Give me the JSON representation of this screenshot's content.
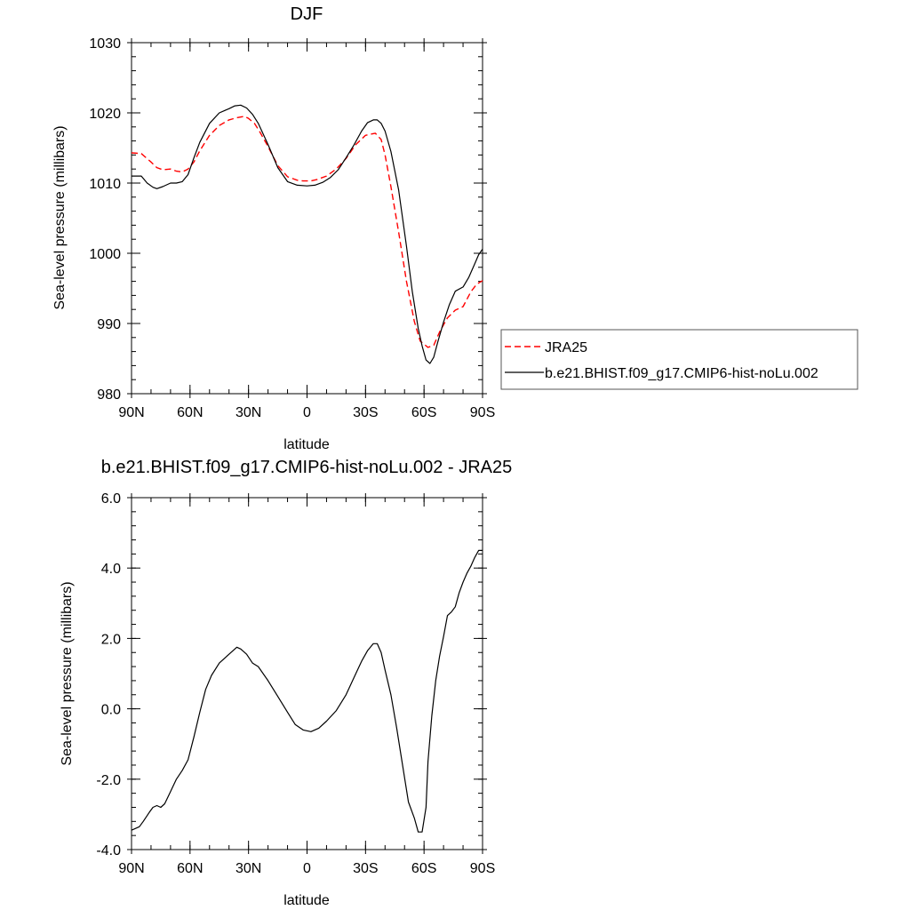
{
  "chart_data": [
    {
      "type": "line",
      "title": "DJF",
      "xlabel": "latitude",
      "ylabel": "Sea-level pressure (millibars)",
      "xlim": [
        90,
        -90
      ],
      "ylim": [
        980,
        1030
      ],
      "x_ticks": [
        90,
        60,
        30,
        0,
        -30,
        -60,
        -90
      ],
      "x_tick_labels": [
        "90N",
        "60N",
        "30N",
        "0",
        "30S",
        "60S",
        "90S"
      ],
      "y_ticks": [
        980,
        990,
        1000,
        1010,
        1020,
        1030
      ],
      "y_tick_labels": [
        "980",
        "990",
        "1000",
        "1010",
        "1020",
        "1030"
      ],
      "legend_position": "right",
      "series": [
        {
          "name": "JRA25",
          "color": "#ff0000",
          "dash": "dashed",
          "x": [
            90,
            85,
            80,
            77,
            74,
            70,
            67,
            64,
            61,
            58,
            55,
            50,
            45,
            40,
            36,
            32,
            30,
            27,
            24,
            20,
            15,
            10,
            5,
            2,
            -2,
            -5,
            -10,
            -15,
            -20,
            -25,
            -30,
            -35,
            -38,
            -40,
            -43,
            -47,
            -51,
            -55,
            -58,
            -62,
            -65,
            -68,
            -72,
            -76,
            -80,
            -84,
            -87,
            -90
          ],
          "y": [
            1014.3,
            1014.2,
            1013.0,
            1012.2,
            1011.9,
            1012.0,
            1011.7,
            1011.6,
            1012.0,
            1013.0,
            1014.6,
            1016.8,
            1018.2,
            1019.0,
            1019.3,
            1019.5,
            1019.2,
            1018.5,
            1017.2,
            1015.2,
            1012.5,
            1010.9,
            1010.4,
            1010.3,
            1010.3,
            1010.5,
            1011.0,
            1012.0,
            1013.5,
            1015.5,
            1016.8,
            1017.1,
            1016.2,
            1014.0,
            1009.5,
            1003.0,
            996.0,
            990.3,
            987.5,
            986.6,
            986.9,
            988.8,
            990.8,
            991.9,
            992.4,
            994.5,
            995.6,
            996.1
          ]
        },
        {
          "name": "b.e21.BHIST.f09_g17.CMIP6-hist-noLu.002",
          "color": "#000000",
          "dash": "solid",
          "x": [
            90,
            85,
            82,
            79,
            77,
            74,
            70,
            67,
            64,
            61,
            58,
            55,
            50,
            45,
            40,
            37,
            34,
            31,
            28,
            25,
            20,
            15,
            10,
            5,
            0,
            -4,
            -8,
            -12,
            -16,
            -20,
            -24,
            -28,
            -31,
            -34,
            -36,
            -38,
            -40,
            -43,
            -47,
            -51,
            -54,
            -57,
            -59,
            -61,
            -63,
            -65,
            -67,
            -70,
            -73,
            -76,
            -80,
            -83,
            -86,
            -88,
            -90
          ],
          "y": [
            1011.0,
            1011.0,
            1010.0,
            1009.4,
            1009.2,
            1009.5,
            1010.0,
            1010.0,
            1010.2,
            1011.2,
            1013.6,
            1015.8,
            1018.5,
            1020.0,
            1020.6,
            1021.0,
            1021.1,
            1020.7,
            1019.8,
            1018.5,
            1015.5,
            1012.2,
            1010.2,
            1009.7,
            1009.6,
            1009.7,
            1010.1,
            1010.8,
            1011.9,
            1013.6,
            1015.4,
            1017.4,
            1018.6,
            1019.0,
            1019.0,
            1018.5,
            1017.4,
            1014.5,
            1009.0,
            1001.0,
            994.5,
            989.3,
            986.8,
            984.8,
            984.3,
            985.2,
            987.3,
            990.2,
            992.7,
            994.6,
            995.2,
            996.6,
            998.5,
            999.8,
            1000.6
          ]
        }
      ]
    },
    {
      "type": "line",
      "title": "b.e21.BHIST.f09_g17.CMIP6-hist-noLu.002 - JRA25",
      "xlabel": "latitude",
      "ylabel": "Sea-level pressure (millibars)",
      "xlim": [
        90,
        -90
      ],
      "ylim": [
        -4.0,
        6.0
      ],
      "x_ticks": [
        90,
        60,
        30,
        0,
        -30,
        -60,
        -90
      ],
      "x_tick_labels": [
        "90N",
        "60N",
        "30N",
        "0",
        "30S",
        "60S",
        "90S"
      ],
      "y_ticks": [
        -4,
        -2,
        0,
        2,
        4,
        6
      ],
      "y_tick_labels": [
        "-4.0",
        "-2.0",
        "0.0",
        "2.0",
        "4.0",
        "6.0"
      ],
      "series": [
        {
          "color": "#000000",
          "dash": "solid",
          "x": [
            90,
            86,
            84,
            81,
            79,
            77,
            75,
            73,
            70,
            67,
            64,
            61,
            58,
            55,
            52,
            49,
            45,
            40,
            36,
            34,
            31,
            28,
            25,
            20,
            15,
            10,
            6,
            2,
            -2,
            -6,
            -10,
            -15,
            -20,
            -25,
            -28,
            -31,
            -34,
            -36,
            -38,
            -40,
            -43,
            -46,
            -49,
            -52,
            -55,
            -57,
            -59,
            -61,
            -62,
            -64,
            -66,
            -68,
            -70,
            -72,
            -74,
            -76,
            -78,
            -80,
            -82,
            -84,
            -86,
            -88,
            -90
          ],
          "y": [
            -3.45,
            -3.35,
            -3.2,
            -2.95,
            -2.8,
            -2.75,
            -2.8,
            -2.7,
            -2.35,
            -2.0,
            -1.75,
            -1.45,
            -0.8,
            -0.1,
            0.55,
            0.95,
            1.3,
            1.55,
            1.75,
            1.7,
            1.55,
            1.3,
            1.2,
            0.8,
            0.35,
            -0.1,
            -0.45,
            -0.6,
            -0.65,
            -0.55,
            -0.35,
            -0.05,
            0.4,
            1.0,
            1.35,
            1.65,
            1.85,
            1.85,
            1.6,
            1.1,
            0.4,
            -0.55,
            -1.6,
            -2.65,
            -3.1,
            -3.5,
            -3.5,
            -2.8,
            -1.5,
            -0.2,
            0.8,
            1.5,
            2.05,
            2.65,
            2.75,
            2.9,
            3.3,
            3.6,
            3.85,
            4.05,
            4.3,
            4.5,
            4.5
          ]
        }
      ]
    }
  ]
}
